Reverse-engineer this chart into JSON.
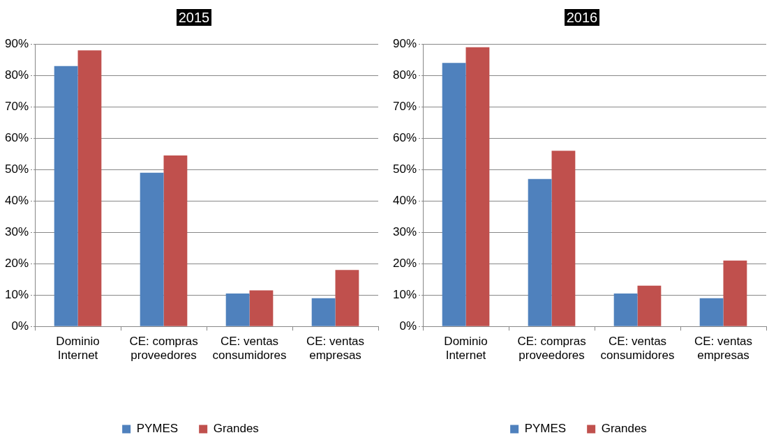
{
  "chart_data": [
    {
      "type": "bar",
      "title": "2015",
      "categories": [
        "Dominio Internet",
        "CE: compras proveedores",
        "CE: ventas consumidores",
        "CE: ventas empresas"
      ],
      "series": [
        {
          "name": "PYMES",
          "color": "#4f81bd",
          "values": [
            83,
            49,
            10.5,
            9
          ]
        },
        {
          "name": "Grandes",
          "color": "#c0504d",
          "values": [
            88,
            54.5,
            11.5,
            18
          ]
        }
      ],
      "ylim": [
        0,
        90
      ],
      "yticks": [
        {
          "value": 0,
          "label": "0%"
        },
        {
          "value": 10,
          "label": "10%"
        },
        {
          "value": 20,
          "label": "20%"
        },
        {
          "value": 30,
          "label": "30%"
        },
        {
          "value": 40,
          "label": "40%"
        },
        {
          "value": 50,
          "label": "50%"
        },
        {
          "value": 60,
          "label": "60%"
        },
        {
          "value": 70,
          "label": "70%"
        },
        {
          "value": 80,
          "label": "80%"
        },
        {
          "value": 90,
          "label": "90%"
        }
      ],
      "grid": "y",
      "legend": "bottom"
    },
    {
      "type": "bar",
      "title": "2016",
      "categories": [
        "Dominio Internet",
        "CE: compras proveedores",
        "CE: ventas consumidores",
        "CE: ventas empresas"
      ],
      "series": [
        {
          "name": "PYMES",
          "color": "#4f81bd",
          "values": [
            84,
            47,
            10.5,
            9
          ]
        },
        {
          "name": "Grandes",
          "color": "#c0504d",
          "values": [
            89,
            56,
            13,
            21
          ]
        }
      ],
      "ylim": [
        0,
        90
      ],
      "yticks": [
        {
          "value": 0,
          "label": "0%"
        },
        {
          "value": 10,
          "label": "10%"
        },
        {
          "value": 20,
          "label": "20%"
        },
        {
          "value": 30,
          "label": "30%"
        },
        {
          "value": 40,
          "label": "40%"
        },
        {
          "value": 50,
          "label": "50%"
        },
        {
          "value": 60,
          "label": "60%"
        },
        {
          "value": 70,
          "label": "70%"
        },
        {
          "value": 80,
          "label": "80%"
        },
        {
          "value": 90,
          "label": "90%"
        }
      ],
      "grid": "y",
      "legend": "bottom"
    }
  ]
}
